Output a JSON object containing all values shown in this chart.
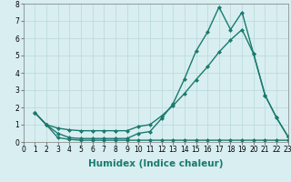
{
  "line1_x": [
    1,
    2,
    3,
    4,
    5,
    6,
    7,
    8,
    9,
    10,
    11,
    12,
    13,
    14,
    15,
    16,
    17,
    18,
    19,
    20,
    21,
    22,
    23
  ],
  "line1_y": [
    1.7,
    1.0,
    0.5,
    0.25,
    0.2,
    0.2,
    0.2,
    0.2,
    0.2,
    0.5,
    0.6,
    1.35,
    2.2,
    3.65,
    5.25,
    6.35,
    7.8,
    6.5,
    7.5,
    5.1,
    2.7,
    1.4,
    0.3
  ],
  "line2_x": [
    1,
    2,
    3,
    4,
    5,
    6,
    7,
    8,
    9,
    10,
    11,
    12,
    13,
    14,
    15,
    16,
    17,
    18,
    19,
    20,
    21,
    22,
    23
  ],
  "line2_y": [
    1.7,
    1.0,
    0.8,
    0.7,
    0.65,
    0.65,
    0.65,
    0.65,
    0.65,
    0.9,
    1.0,
    1.5,
    2.1,
    2.8,
    3.6,
    4.35,
    5.2,
    5.9,
    6.5,
    5.1,
    2.7,
    1.4,
    0.3
  ],
  "line3_x": [
    1,
    2,
    3,
    4,
    5,
    6,
    7,
    8,
    9,
    10,
    11,
    12,
    13,
    14,
    15,
    16,
    17,
    18,
    19,
    20,
    21,
    22,
    23
  ],
  "line3_y": [
    1.7,
    1.0,
    0.25,
    0.15,
    0.1,
    0.1,
    0.1,
    0.1,
    0.1,
    0.1,
    0.1,
    0.1,
    0.1,
    0.1,
    0.1,
    0.1,
    0.1,
    0.1,
    0.1,
    0.1,
    0.1,
    0.1,
    0.1
  ],
  "line_color": "#1a7a6e",
  "bg_color": "#d8eef0",
  "grid_color": "#b8d8dc",
  "xlabel": "Humidex (Indice chaleur)",
  "xlim": [
    0,
    23
  ],
  "ylim": [
    0,
    8
  ],
  "xticks": [
    0,
    1,
    2,
    3,
    4,
    5,
    6,
    7,
    8,
    9,
    10,
    11,
    12,
    13,
    14,
    15,
    16,
    17,
    18,
    19,
    20,
    21,
    22,
    23
  ],
  "yticks": [
    0,
    1,
    2,
    3,
    4,
    5,
    6,
    7,
    8
  ],
  "marker": "D",
  "markersize": 2.5,
  "linewidth": 1.0,
  "xlabel_fontsize": 7.5,
  "tick_fontsize": 5.5
}
